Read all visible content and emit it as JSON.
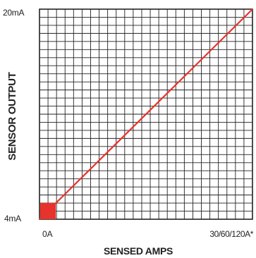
{
  "chart_data": {
    "type": "line",
    "title": "",
    "xlabel": "SENSED AMPS",
    "ylabel": "SENSOR OUTPUT",
    "x_tick_labels": [
      "0A",
      "30/60/120A*"
    ],
    "y_tick_labels": [
      "4mA",
      "20mA"
    ],
    "x_range": [
      0,
      1
    ],
    "y_range": [
      4,
      20
    ],
    "series": [
      {
        "values": [
          {
            "x": 0,
            "y": 4
          },
          {
            "x": 1,
            "y": 20
          }
        ]
      }
    ],
    "grid": true,
    "line_color": "#e8322c",
    "origin_marker_color": "#e8322c",
    "grid_color": "#222222"
  }
}
